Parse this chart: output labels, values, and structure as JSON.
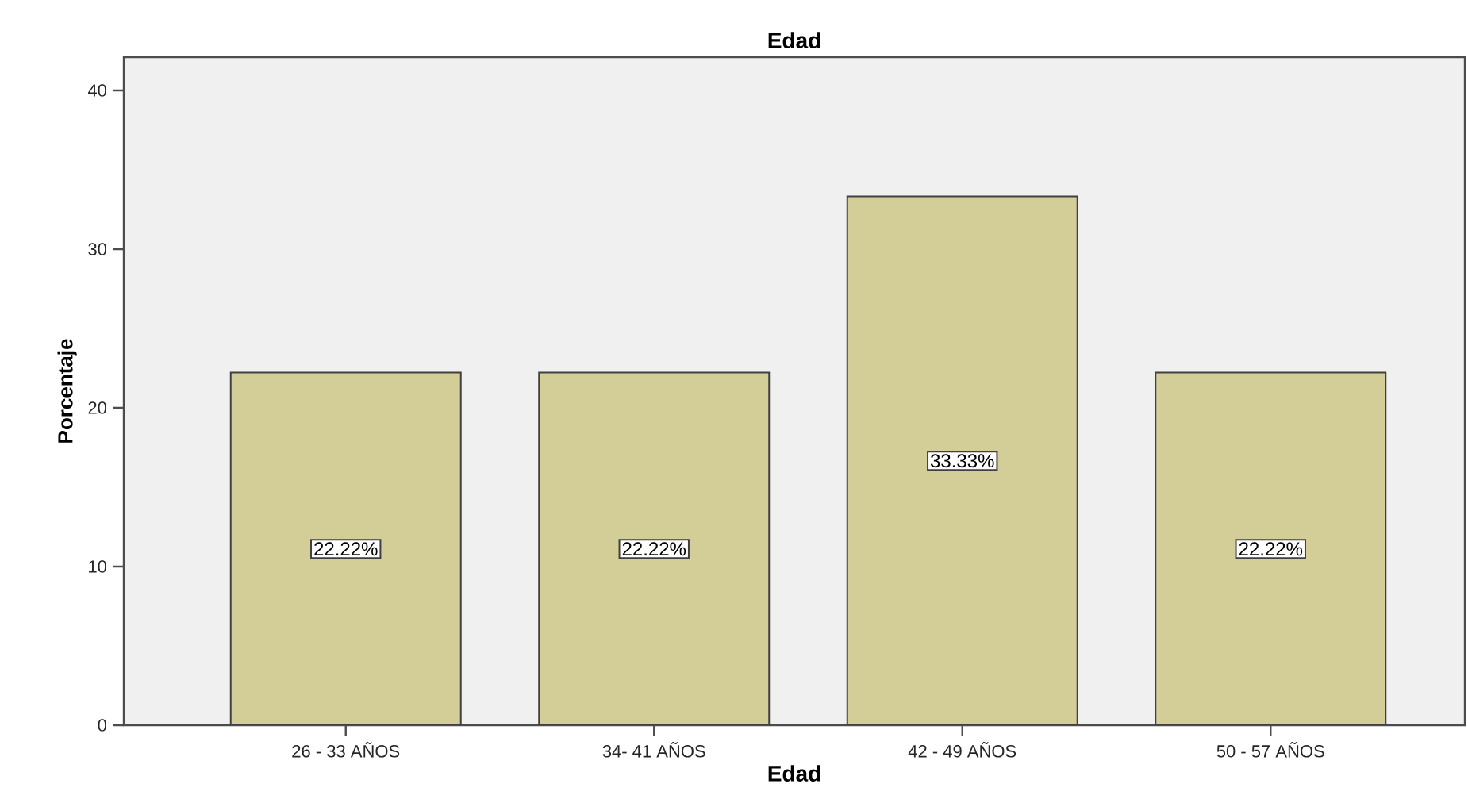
{
  "chart_data": {
    "type": "bar",
    "title": "Edad",
    "xlabel": "Edad",
    "ylabel": "Porcentaje",
    "categories": [
      "26 - 33 AÑOS",
      "34- 41 AÑOS",
      "42 - 49 AÑOS",
      "50 - 57 AÑOS"
    ],
    "values": [
      22.22,
      22.22,
      33.33,
      22.22
    ],
    "value_labels": [
      "22.22%",
      "22.22%",
      "33.33%",
      "22.22%"
    ],
    "color": "#d3cd98",
    "ylim": [
      0,
      42.1
    ],
    "yticks": [
      0,
      10,
      20,
      30,
      40
    ],
    "grid": false
  }
}
